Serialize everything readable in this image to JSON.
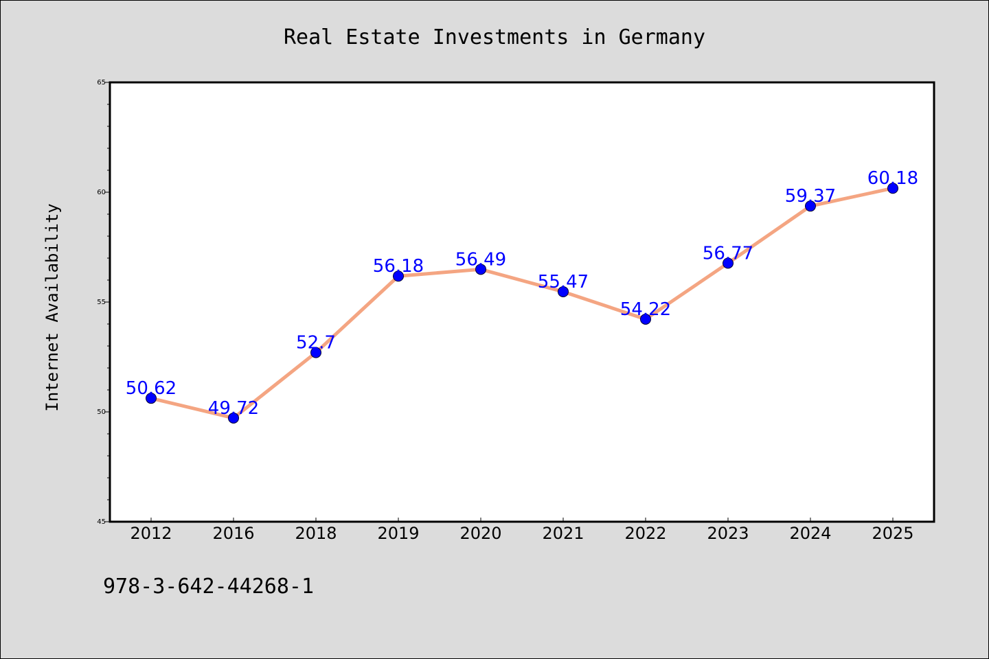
{
  "chart_data": {
    "type": "line",
    "title": "Real Estate Investments in Germany",
    "ylabel": "Internet Availability",
    "categories": [
      "2012",
      "2016",
      "2018",
      "2019",
      "2020",
      "2021",
      "2022",
      "2023",
      "2024",
      "2025"
    ],
    "values": [
      50.62,
      49.72,
      52.7,
      56.18,
      56.49,
      55.47,
      54.22,
      56.77,
      59.37,
      60.18
    ],
    "data_labels": [
      "50.62",
      "49.72",
      "52.7",
      "56.18",
      "56.49",
      "55.47",
      "54.22",
      "56.77",
      "59.37",
      "60.18"
    ],
    "ylim": [
      45,
      65
    ],
    "yticks": [
      45,
      50,
      55,
      60,
      65
    ],
    "grid": false,
    "colors": {
      "line": "#f4a582",
      "marker": "#0000ff",
      "label": "#0000ff",
      "background": "#dcdcdc",
      "plot_bg": "#ffffff"
    }
  },
  "footer": {
    "text": "978-3-642-44268-1"
  }
}
